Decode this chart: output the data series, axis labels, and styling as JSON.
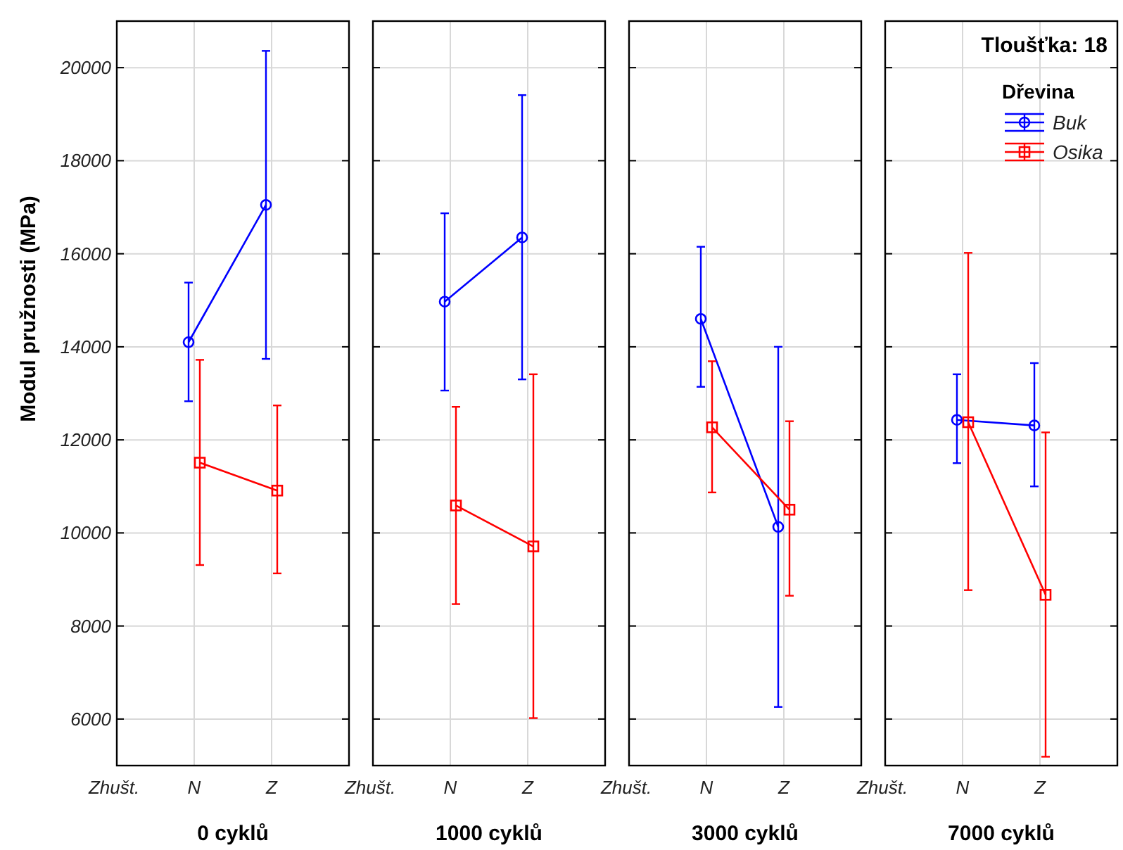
{
  "chart_data": [
    {
      "type": "line",
      "title": "0 cyklů",
      "xlabel": "Zhušt.",
      "ylabel": "Modul pružnosti (MPa)",
      "categories": [
        "N",
        "Z"
      ],
      "ylim": [
        5000,
        21000
      ],
      "yticks": [
        6000,
        8000,
        10000,
        12000,
        14000,
        16000,
        18000,
        20000
      ],
      "grid": true,
      "legend": false,
      "series": [
        {
          "color": "#0000ff",
          "marker": "circle",
          "values": [
            14100,
            17050
          ],
          "errors": [
            [
              12830,
              15380
            ],
            [
              13740,
              20360
            ]
          ]
        },
        {
          "color": "#ff0000",
          "marker": "square",
          "values": [
            11510,
            10910
          ],
          "errors": [
            [
              9310,
              13720
            ],
            [
              9130,
              12740
            ]
          ]
        }
      ]
    },
    {
      "type": "line",
      "title": "1000 cyklů",
      "xlabel": "Zhušt.",
      "categories": [
        "N",
        "Z"
      ],
      "ylim": [
        5000,
        21000
      ],
      "yticks": [
        6000,
        8000,
        10000,
        12000,
        14000,
        16000,
        18000,
        20000
      ],
      "tick_labels": "x",
      "grid": true,
      "legend": false,
      "series": [
        {
          "color": "#0000ff",
          "marker": "circle",
          "values": [
            14970,
            16350
          ],
          "errors": [
            [
              13060,
              16870
            ],
            [
              13300,
              19410
            ]
          ]
        },
        {
          "color": "#ff0000",
          "marker": "square",
          "values": [
            10590,
            9710
          ],
          "errors": [
            [
              8470,
              12710
            ],
            [
              6020,
              13410
            ]
          ]
        }
      ]
    },
    {
      "type": "line",
      "title": "3000 cyklů",
      "xlabel": "Zhušt.",
      "categories": [
        "N",
        "Z"
      ],
      "ylim": [
        5000,
        21000
      ],
      "yticks": [
        6000,
        8000,
        10000,
        12000,
        14000,
        16000,
        18000,
        20000
      ],
      "tick_labels": "x",
      "grid": true,
      "legend": false,
      "series": [
        {
          "color": "#0000ff",
          "marker": "circle",
          "values": [
            14600,
            10130
          ],
          "errors": [
            [
              13140,
              16150
            ],
            [
              6260,
              14000
            ]
          ]
        },
        {
          "color": "#ff0000",
          "marker": "square",
          "values": [
            12270,
            10500
          ],
          "errors": [
            [
              10870,
              13690
            ],
            [
              8650,
              12400
            ]
          ]
        }
      ]
    },
    {
      "type": "line",
      "title": "7000 cyklů",
      "xlabel": "Zhušt.",
      "categories": [
        "N",
        "Z"
      ],
      "ylim": [
        5000,
        21000
      ],
      "yticks": [
        6000,
        8000,
        10000,
        12000,
        14000,
        16000,
        18000,
        20000
      ],
      "tick_labels": "x",
      "grid": true,
      "legend": "top right",
      "legend_title": "Dřevina",
      "annotations": [
        "Tloušťka: 18"
      ],
      "series": [
        {
          "name": "Buk",
          "color": "#0000ff",
          "marker": "circle",
          "values": [
            12430,
            12310
          ],
          "errors": [
            [
              11500,
              13410
            ],
            [
              11000,
              13650
            ]
          ]
        },
        {
          "name": "Osika",
          "color": "#ff0000",
          "marker": "square",
          "values": [
            12380,
            8670
          ],
          "errors": [
            [
              8770,
              16020
            ],
            [
              5190,
              12160
            ]
          ]
        }
      ]
    }
  ]
}
